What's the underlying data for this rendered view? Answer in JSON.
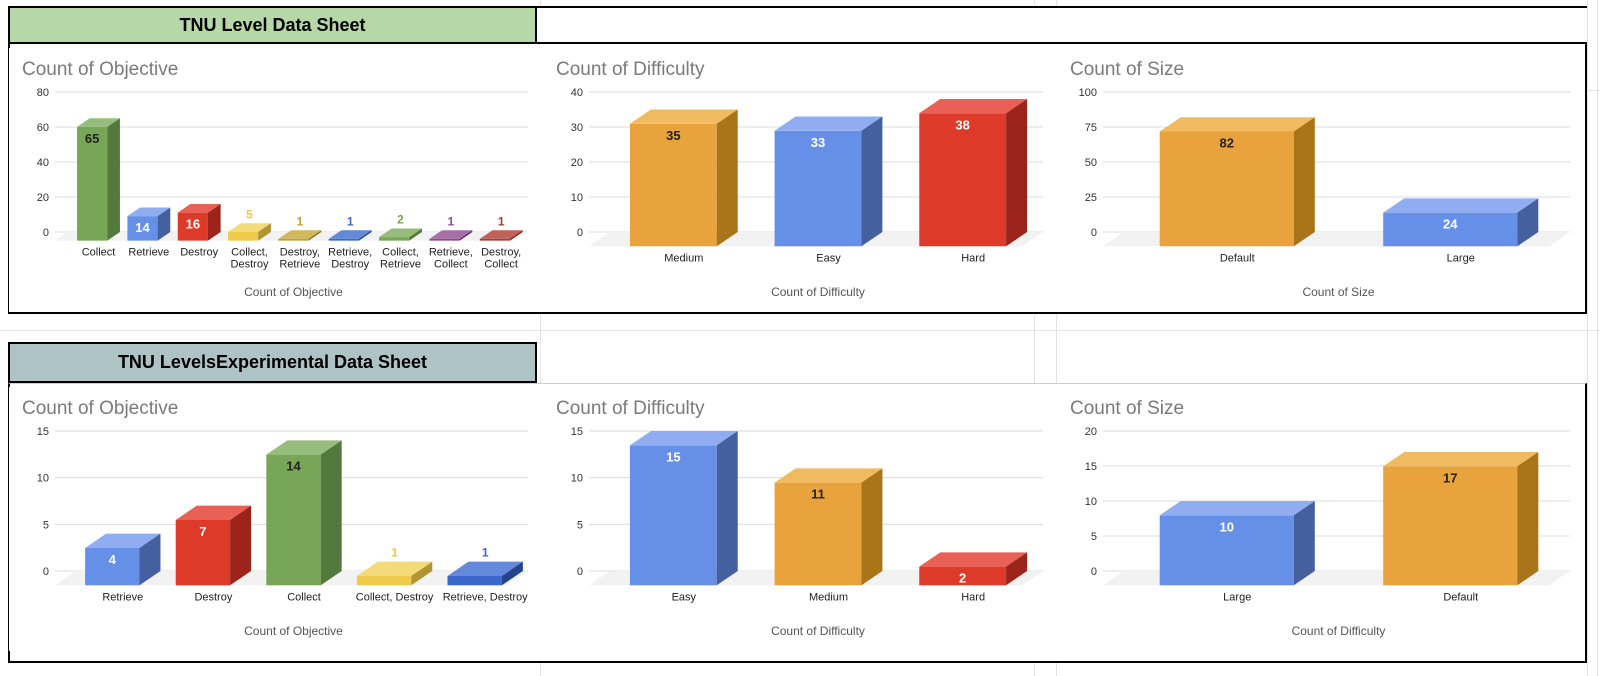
{
  "sheet": {
    "sections": [
      {
        "header": {
          "title": "TNU Level Data Sheet",
          "bg": "#b6d7a8"
        }
      },
      {
        "header": {
          "title": "TNU LevelsExperimental Data Sheet",
          "bg": "#aec3c6"
        }
      }
    ]
  },
  "palette": {
    "blue": {
      "front": "#6690e8",
      "top": "#8fadf0",
      "side": "#44609f",
      "dark_label": false
    },
    "royal": {
      "front": "#3b66cc",
      "top": "#6488da",
      "side": "#27438c",
      "dark_label": false
    },
    "red": {
      "front": "#dd3a2a",
      "top": "#e96056",
      "side": "#9c241a",
      "dark_label": false
    },
    "orange": {
      "front": "#e8a33c",
      "top": "#f0bb60",
      "side": "#aa7418",
      "dark_label": true
    },
    "green": {
      "front": "#76a656",
      "top": "#97bd7d",
      "side": "#54793c",
      "dark_label": true
    },
    "yellow": {
      "front": "#edca4a",
      "top": "#f3da7a",
      "side": "#b29431",
      "dark_label": true
    },
    "gold": {
      "front": "#c0a032",
      "top": "#d2b85c",
      "side": "#8a7120",
      "dark_label": false
    },
    "purple": {
      "front": "#8b4a8b",
      "top": "#a86fa6",
      "side": "#5e2f5e",
      "dark_label": false
    },
    "darkred": {
      "front": "#a93c33",
      "top": "#c0625a",
      "side": "#722420",
      "dark_label": false
    }
  },
  "chart_data": [
    {
      "type": "bar",
      "style": "3d-column",
      "section": "TNU Level Data Sheet",
      "title": "Count of Objective",
      "xlabel": "Count of Objective",
      "categories": [
        "Collect",
        "Retrieve",
        "Destroy",
        "Collect, Destroy",
        "Destroy, Retrieve",
        "Retrieve, Destroy",
        "Collect, Retrieve",
        "Retrieve, Collect",
        "Destroy, Collect"
      ],
      "values": [
        65,
        14,
        16,
        5,
        1,
        1,
        2,
        1,
        1
      ],
      "colors": [
        "green",
        "blue",
        "red",
        "yellow",
        "gold",
        "royal",
        "green",
        "purple",
        "darkred"
      ],
      "yticks": [
        0,
        20,
        40,
        60,
        80
      ],
      "ylim": [
        0,
        80
      ],
      "wrap_labels": true,
      "grid": true,
      "legend": "none"
    },
    {
      "type": "bar",
      "style": "3d-column",
      "section": "TNU Level Data Sheet",
      "title": "Count of Difficulty",
      "xlabel": "Count of Difficulty",
      "categories": [
        "Medium",
        "Easy",
        "Hard"
      ],
      "values": [
        35,
        33,
        38
      ],
      "colors": [
        "orange",
        "blue",
        "red"
      ],
      "yticks": [
        0,
        10,
        20,
        30,
        40
      ],
      "ylim": [
        0,
        40
      ],
      "wrap_labels": false,
      "grid": true,
      "legend": "none"
    },
    {
      "type": "bar",
      "style": "3d-column",
      "section": "TNU Level Data Sheet",
      "title": "Count of Size",
      "xlabel": "Count of Size",
      "categories": [
        "Default",
        "Large"
      ],
      "values": [
        82,
        24
      ],
      "colors": [
        "orange",
        "blue"
      ],
      "yticks": [
        0,
        25,
        50,
        75,
        100
      ],
      "ylim": [
        0,
        100
      ],
      "wrap_labels": false,
      "grid": true,
      "legend": "none"
    },
    {
      "type": "bar",
      "style": "3d-column",
      "section": "TNU LevelsExperimental Data Sheet",
      "title": "Count of Objective",
      "xlabel": "Count of Objective",
      "categories": [
        "Retrieve",
        "Destroy",
        "Collect",
        "Collect, Destroy",
        "Retrieve, Destroy"
      ],
      "values": [
        4,
        7,
        14,
        1,
        1
      ],
      "colors": [
        "blue",
        "red",
        "green",
        "yellow",
        "royal"
      ],
      "yticks": [
        0,
        5,
        10,
        15
      ],
      "ylim": [
        0,
        15
      ],
      "wrap_labels": false,
      "grid": true,
      "legend": "none"
    },
    {
      "type": "bar",
      "style": "3d-column",
      "section": "TNU LevelsExperimental Data Sheet",
      "title": "Count of Difficulty",
      "xlabel": "Count of Difficulty",
      "categories": [
        "Easy",
        "Medium",
        "Hard"
      ],
      "values": [
        15,
        11,
        2
      ],
      "colors": [
        "blue",
        "orange",
        "red"
      ],
      "yticks": [
        0,
        5,
        10,
        15
      ],
      "ylim": [
        0,
        15
      ],
      "wrap_labels": false,
      "grid": true,
      "legend": "none"
    },
    {
      "type": "bar",
      "style": "3d-column",
      "section": "TNU LevelsExperimental Data Sheet",
      "title": "Count of Size",
      "xlabel": "Count of Difficulty",
      "categories": [
        "Large",
        "Default"
      ],
      "values": [
        10,
        17
      ],
      "colors": [
        "blue",
        "orange"
      ],
      "yticks": [
        0,
        5,
        10,
        15,
        20
      ],
      "ylim": [
        0,
        20
      ],
      "wrap_labels": false,
      "grid": true,
      "legend": "none"
    }
  ]
}
